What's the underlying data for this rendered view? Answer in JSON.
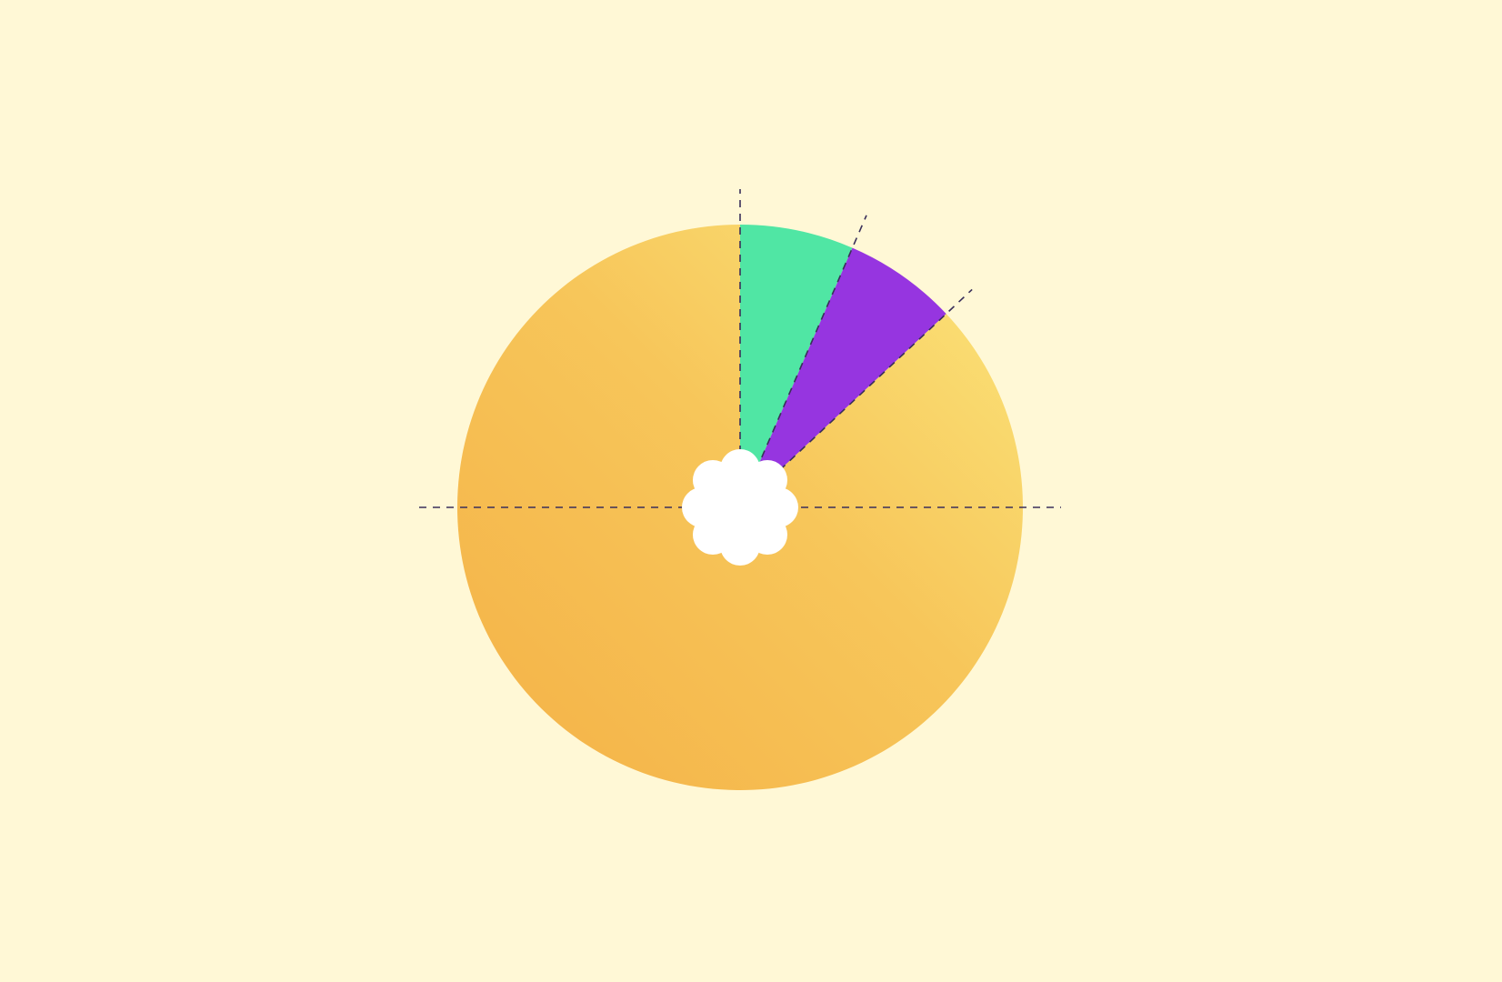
{
  "chart_data": {
    "type": "pie",
    "values": [
      6.5,
      6.5,
      87
    ],
    "colors": [
      "#50e6a4",
      "#9635e0",
      "#f7c65a"
    ]
  }
}
